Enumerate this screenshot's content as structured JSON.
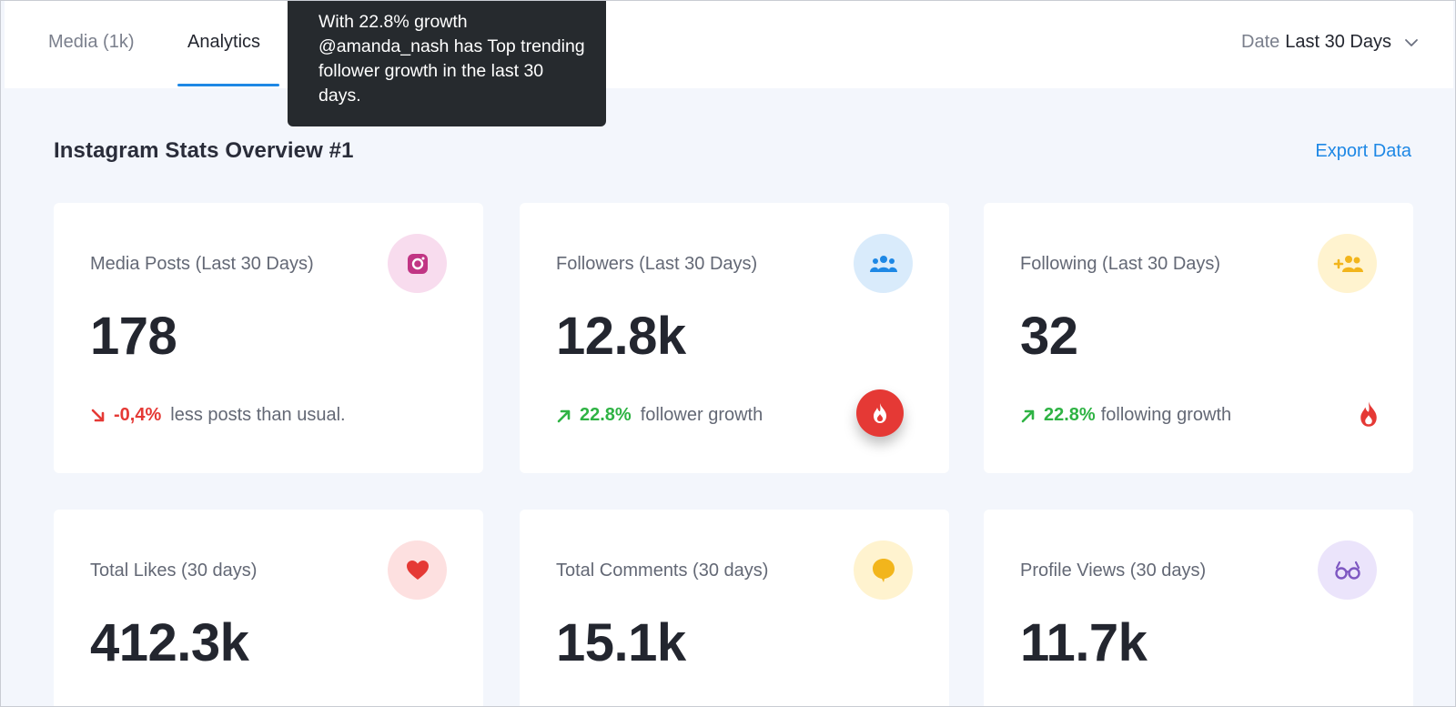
{
  "tabs": {
    "media": "Media (1k)",
    "analytics": "Analytics"
  },
  "date_filter": {
    "label": "Date",
    "value": "Last 30 Days"
  },
  "tooltip": {
    "text": "With 22.8% growth @amanda_nash has Top trending follower growth in the last 30 days."
  },
  "section": {
    "title": "Instagram Stats Overview #1",
    "export": "Export Data"
  },
  "cards": [
    {
      "label": "Media Posts (Last 30 Days)",
      "value": "178",
      "icon": "instagram-icon",
      "change": "-0,4%",
      "change_text": "less posts than usual.",
      "trend": "down"
    },
    {
      "label": "Followers (Last 30 Days)",
      "value": "12.8k",
      "icon": "users-icon",
      "change": "22.8%",
      "change_text": "follower growth",
      "trend": "up"
    },
    {
      "label": "Following (Last 30 Days)",
      "value": "32",
      "icon": "add-user-icon",
      "change": "22.8%",
      "change_text": "following growth",
      "trend": "up"
    },
    {
      "label": "Total Likes (30 days)",
      "value": "412.3k",
      "icon": "heart-icon"
    },
    {
      "label": "Total Comments (30 days)",
      "value": "15.1k",
      "icon": "comment-icon"
    },
    {
      "label": "Profile Views (30 days)",
      "value": "11.7k",
      "icon": "glasses-icon"
    }
  ],
  "colors": {
    "accent": "#1e88e5",
    "positive": "#2fb344",
    "negative": "#e53935",
    "tooltip_bg": "#262a2e"
  }
}
